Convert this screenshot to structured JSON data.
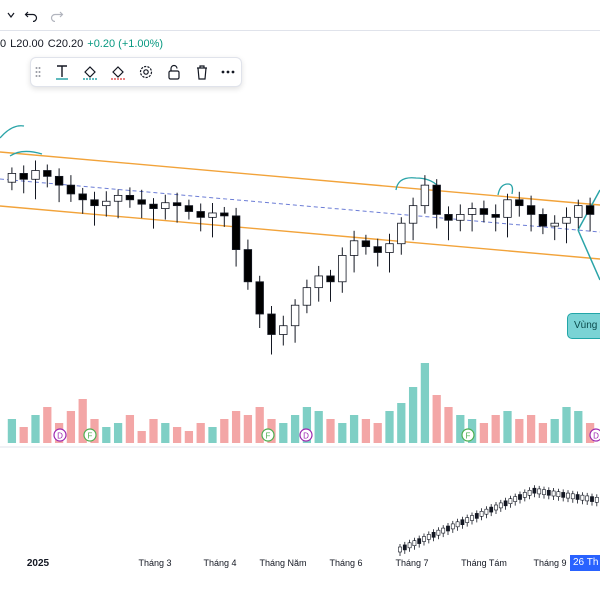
{
  "ohlc": {
    "prefix": "0",
    "low": "L20.00",
    "close": "C20.20",
    "change": "+0.20 (+1.00%)"
  },
  "toolbar": {
    "items": [
      {
        "icon": "drag-handle-icon"
      },
      {
        "icon": "text-icon"
      },
      {
        "icon": "fill-color-icon"
      },
      {
        "icon": "line-color-icon"
      },
      {
        "icon": "settings-icon"
      },
      {
        "icon": "lock-icon"
      },
      {
        "icon": "trash-icon"
      },
      {
        "icon": "more-icon"
      }
    ]
  },
  "zone_label": "Vùng",
  "date_tag": "26 Th",
  "colors": {
    "up": "#089981",
    "down": "#000000",
    "channel": "#f2a33a",
    "mid": "#6c7dd6",
    "annotation": "#2aa4a8",
    "vol_up": "#7fcfc5",
    "vol_down": "#f3a6a6"
  },
  "chart_data": {
    "type": "candlestick",
    "x_axis_labels": [
      "2025",
      "Tháng 3",
      "Tháng 4",
      "Tháng Năm",
      "Tháng 6",
      "Tháng 7",
      "Tháng Tám",
      "Tháng 9"
    ],
    "events": [
      "D",
      "F",
      "F",
      "D",
      "F",
      "D"
    ],
    "price_candles": [
      {
        "o": 31.8,
        "c": 32.4
      },
      {
        "o": 32.4,
        "c": 32.0
      },
      {
        "o": 32.0,
        "c": 32.6
      },
      {
        "o": 32.6,
        "c": 32.2
      },
      {
        "o": 32.2,
        "c": 31.6
      },
      {
        "o": 31.6,
        "c": 31.0
      },
      {
        "o": 31.0,
        "c": 30.6
      },
      {
        "o": 30.6,
        "c": 30.2
      },
      {
        "o": 30.2,
        "c": 30.5
      },
      {
        "o": 30.5,
        "c": 30.9
      },
      {
        "o": 30.9,
        "c": 30.6
      },
      {
        "o": 30.6,
        "c": 30.3
      },
      {
        "o": 30.3,
        "c": 30.0
      },
      {
        "o": 30.0,
        "c": 30.4
      },
      {
        "o": 30.4,
        "c": 30.2
      },
      {
        "o": 30.2,
        "c": 29.8
      },
      {
        "o": 29.8,
        "c": 29.4
      },
      {
        "o": 29.4,
        "c": 29.7
      },
      {
        "o": 29.7,
        "c": 29.5
      },
      {
        "o": 29.5,
        "c": 27.2
      },
      {
        "o": 27.2,
        "c": 25.0
      },
      {
        "o": 25.0,
        "c": 22.8
      },
      {
        "o": 22.8,
        "c": 21.4
      },
      {
        "o": 21.4,
        "c": 22.0
      },
      {
        "o": 22.0,
        "c": 23.4
      },
      {
        "o": 23.4,
        "c": 24.6
      },
      {
        "o": 24.6,
        "c": 25.4
      },
      {
        "o": 25.4,
        "c": 25.0
      },
      {
        "o": 25.0,
        "c": 26.8
      },
      {
        "o": 26.8,
        "c": 27.8
      },
      {
        "o": 27.8,
        "c": 27.4
      },
      {
        "o": 27.4,
        "c": 27.0
      },
      {
        "o": 27.0,
        "c": 27.6
      },
      {
        "o": 27.6,
        "c": 29.0
      },
      {
        "o": 29.0,
        "c": 30.2
      },
      {
        "o": 30.2,
        "c": 31.6
      },
      {
        "o": 31.6,
        "c": 29.6
      },
      {
        "o": 29.6,
        "c": 29.2
      },
      {
        "o": 29.2,
        "c": 29.6
      },
      {
        "o": 29.6,
        "c": 30.0
      },
      {
        "o": 30.0,
        "c": 29.6
      },
      {
        "o": 29.6,
        "c": 29.4
      },
      {
        "o": 29.4,
        "c": 30.6
      },
      {
        "o": 30.6,
        "c": 30.2
      },
      {
        "o": 30.2,
        "c": 29.6
      },
      {
        "o": 29.6,
        "c": 28.8
      },
      {
        "o": 28.8,
        "c": 29.0
      },
      {
        "o": 29.0,
        "c": 29.4
      },
      {
        "o": 29.4,
        "c": 30.2
      },
      {
        "o": 30.2,
        "c": 29.6
      }
    ],
    "volume": [
      6,
      4,
      7,
      9,
      5,
      8,
      11,
      6,
      4,
      5,
      7,
      3,
      6,
      5,
      4,
      3,
      5,
      4,
      6,
      8,
      7,
      9,
      6,
      5,
      7,
      9,
      8,
      6,
      5,
      7,
      6,
      5,
      8,
      10,
      14,
      20,
      12,
      9,
      7,
      6,
      5,
      7,
      8,
      6,
      7,
      5,
      6,
      9,
      8,
      5
    ]
  }
}
